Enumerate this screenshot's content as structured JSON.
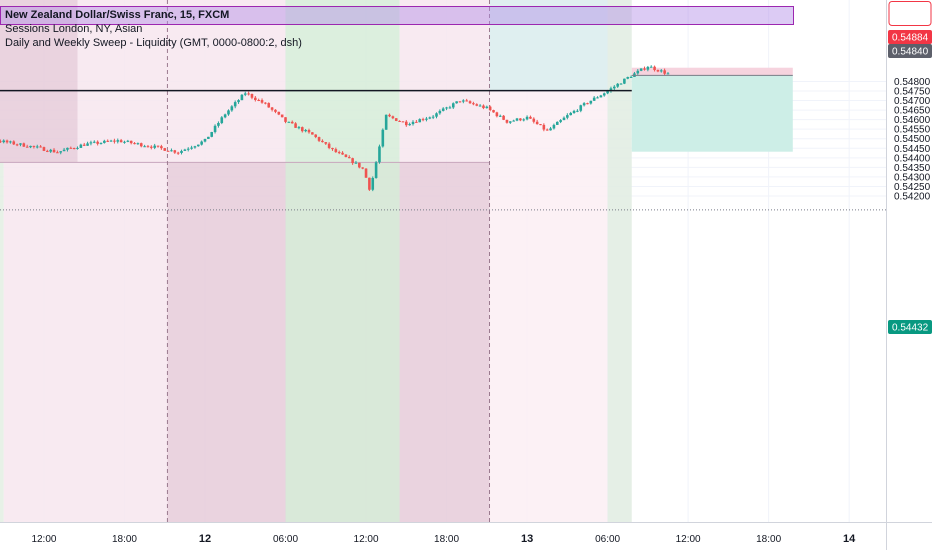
{
  "legend": {
    "title": "New Zealand Dollar/Swiss Franc, 15, FXCM",
    "line2": "Sessions London, NY, Asian",
    "line3": "Daily and Weekly Sweep - Liquidity (GMT, 0000-0800:2, dsh)"
  },
  "colors": {
    "up": "#26a69a",
    "down": "#ef5350",
    "session_pink": "#f7e6ee",
    "session_mauve": "#e6cbd9",
    "session_green": "#d6ecd8",
    "session_teal": "#d9eeee",
    "long_target": "#cdeee7",
    "long_stop": "#f6d3de",
    "range_box": "#c7a6bd"
  },
  "price_tags": [
    {
      "label": "0.54884",
      "value": 0.54884,
      "bg": "#f23645"
    },
    {
      "label": "0.54840",
      "value": 0.5484,
      "bg": "#5d606b"
    },
    {
      "label": "0.54432",
      "value": 0.54432,
      "bg": "#089981"
    }
  ],
  "chart_data": {
    "type": "candlestick",
    "symbol": "NZDCHF",
    "timeframe": "15",
    "x_ticks": [
      "12:00",
      "18:00",
      "12",
      "06:00",
      "12:00",
      "18:00",
      "13",
      "06:00",
      "12:00",
      "18:00",
      "14"
    ],
    "y_ticks": [
      "0.54800",
      "0.54750",
      "0.54700",
      "0.54650",
      "0.54600",
      "0.54550",
      "0.54500",
      "0.54450",
      "0.54400",
      "0.54350",
      "0.54300",
      "0.54250",
      "0.54200"
    ],
    "ylim": [
      0.5417,
      0.5492
    ],
    "xlim_hours": [
      -20.5,
      52.5
    ],
    "current_price": 0.5484,
    "entry_price": 0.54752,
    "weekly_sweep_high": 0.54752,
    "asian_range_low": 0.54376,
    "stop_zone": [
      0.54832,
      0.54872
    ],
    "target_zone": [
      0.54432,
      0.54832
    ],
    "path_hours": [
      -20.5,
      -19,
      -17.5,
      -15.5,
      -13,
      -11,
      -9,
      -6.5,
      -4,
      -2,
      0,
      1.5,
      3,
      4.5,
      6,
      8,
      9.5,
      11,
      11.8,
      12.3,
      13.5,
      15,
      17,
      19,
      21,
      22.5,
      24,
      25.5,
      27,
      28.5,
      30,
      31.5,
      33,
      34.5
    ],
    "path_prices": [
      0.5458,
      0.5462,
      0.5456,
      0.5449,
      0.5446,
      0.5443,
      0.5447,
      0.5449,
      0.5446,
      0.5443,
      0.5449,
      0.5463,
      0.5474,
      0.5468,
      0.5459,
      0.5452,
      0.5444,
      0.5438,
      0.5434,
      0.5423,
      0.5462,
      0.5458,
      0.5462,
      0.547,
      0.5466,
      0.5459,
      0.5461,
      0.5454,
      0.5462,
      0.5469,
      0.5475,
      0.5482,
      0.5488,
      0.5484
    ]
  }
}
